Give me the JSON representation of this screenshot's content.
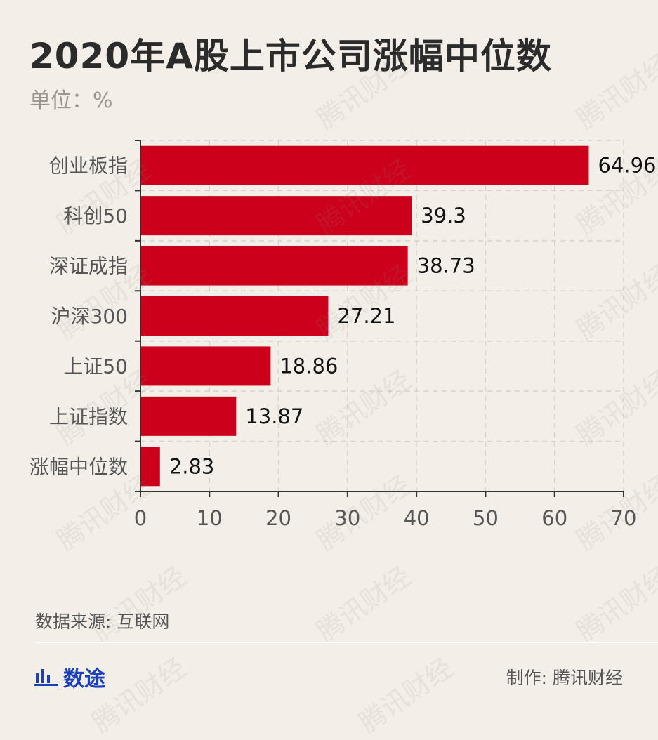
{
  "header": {
    "title": "2020年A股上市公司涨幅中位数",
    "unit": "单位：%"
  },
  "watermark_text": "腾讯财经",
  "footer": {
    "source": "数据来源: 互联网",
    "brand": "数途",
    "brand_icon": "bar-chart-icon",
    "maker": "制作: 腾讯财经"
  },
  "colors": {
    "bar": "#cc001b",
    "background": "#f3eee8",
    "brand": "#1a3fb8"
  },
  "chart_data": {
    "type": "bar",
    "orientation": "horizontal",
    "title": "2020年A股上市公司涨幅中位数",
    "unit": "单位：%",
    "categories": [
      "创业板指",
      "科创50",
      "深证成指",
      "沪深300",
      "上证50",
      "上证指数",
      "涨幅中位数"
    ],
    "values": [
      64.96,
      39.3,
      38.73,
      27.21,
      18.86,
      13.87,
      2.83
    ],
    "value_labels": [
      "64.96",
      "39.3",
      "38.73",
      "27.21",
      "18.86",
      "13.87",
      "2.83"
    ],
    "xlim": [
      0,
      70
    ],
    "xticks": [
      0,
      10,
      20,
      30,
      40,
      50,
      60,
      70
    ],
    "grid": true
  }
}
